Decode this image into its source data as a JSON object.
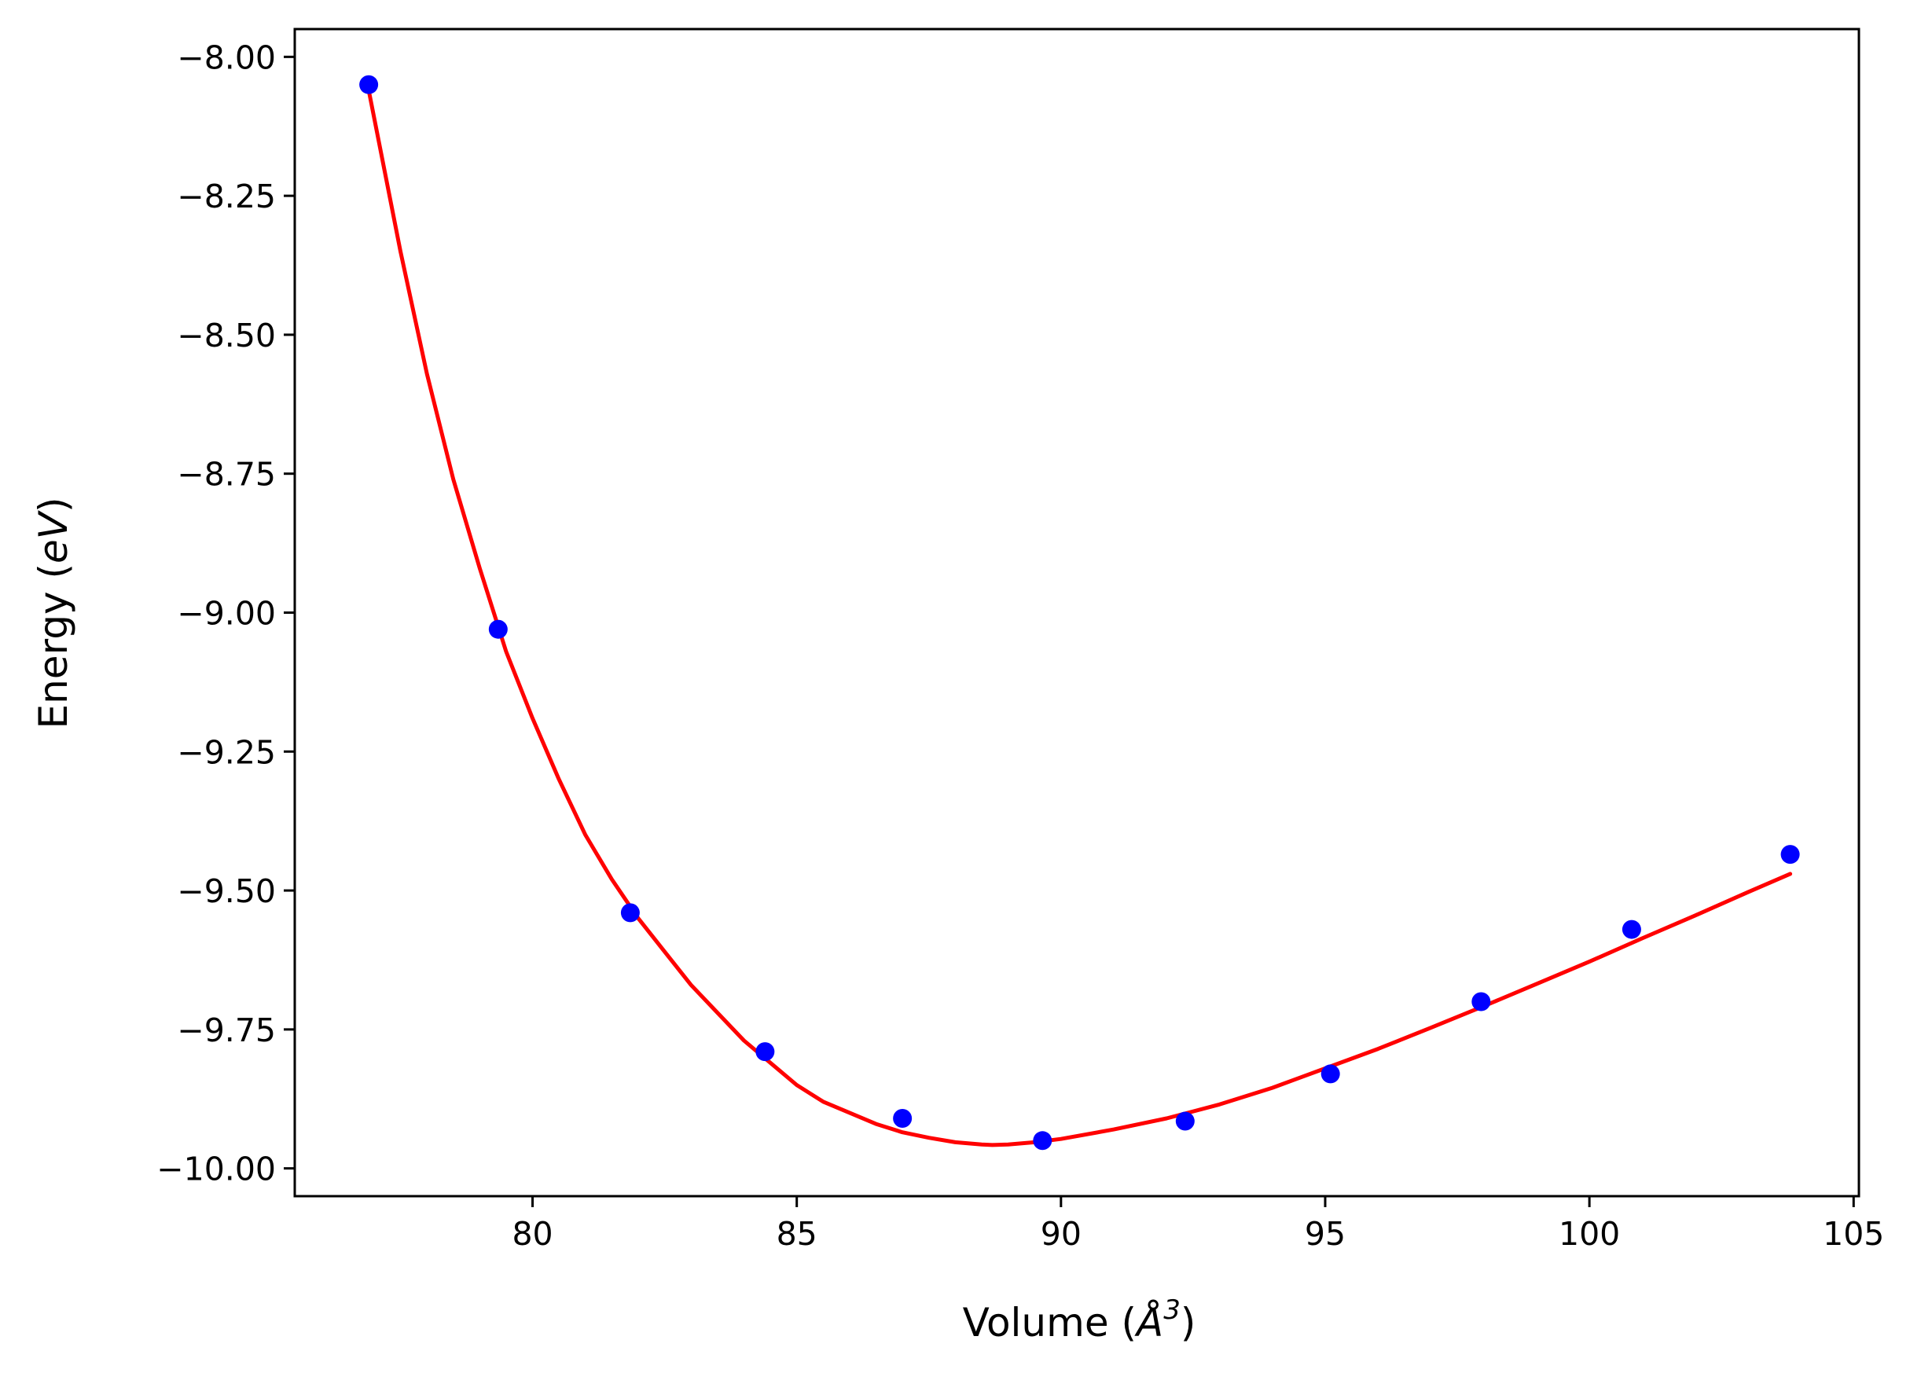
{
  "chart_data": {
    "type": "scatter",
    "xlabel": "Volume (Å³)",
    "xlabel_parts": {
      "prefix": "Volume (",
      "symbol": "Å",
      "exponent": "3",
      "suffix": ")"
    },
    "ylabel": "Energy (eV)",
    "ylabel_parts": {
      "prefix": "Energy (",
      "unit": "eV",
      "suffix": ")"
    },
    "xlim": [
      75.5,
      105.1
    ],
    "ylim": [
      -10.05,
      -7.95
    ],
    "xticks": [
      80,
      85,
      90,
      95,
      100,
      105
    ],
    "yticks": [
      -8.0,
      -8.25,
      -8.5,
      -8.75,
      -9.0,
      -9.25,
      -9.5,
      -9.75,
      -10.0
    ],
    "xtick_labels": [
      "80",
      "85",
      "90",
      "95",
      "100",
      "105"
    ],
    "ytick_labels": [
      "−8.00",
      "−8.25",
      "−8.50",
      "−8.75",
      "−9.00",
      "−9.25",
      "−9.50",
      "−9.75",
      "−10.00"
    ],
    "grid": false,
    "legend": "none",
    "series": [
      {
        "kind": "points",
        "color": "#0000ff",
        "x": [
          76.9,
          79.35,
          81.85,
          84.4,
          87.0,
          89.65,
          92.35,
          95.1,
          97.95,
          100.8,
          103.8
        ],
        "y": [
          -8.05,
          -9.03,
          -9.54,
          -9.79,
          -9.91,
          -9.95,
          -9.915,
          -9.83,
          -9.7,
          -9.57,
          -9.435
        ]
      },
      {
        "kind": "fit-line",
        "color": "#ff0000",
        "x": [
          76.9,
          77.5,
          78.0,
          78.5,
          79.0,
          79.5,
          80.0,
          80.5,
          81.0,
          81.5,
          82.0,
          82.5,
          83.0,
          83.5,
          84.0,
          84.5,
          85.0,
          85.5,
          86.0,
          86.5,
          87.0,
          87.5,
          88.0,
          88.5,
          88.7,
          89.0,
          89.5,
          90.0,
          91.0,
          92.0,
          93.0,
          94.0,
          95.0,
          96.0,
          97.0,
          98.0,
          99.0,
          100.0,
          101.0,
          102.0,
          103.0,
          103.8
        ],
        "y": [
          -8.06,
          -8.35,
          -8.57,
          -8.76,
          -8.92,
          -9.07,
          -9.19,
          -9.3,
          -9.4,
          -9.48,
          -9.55,
          -9.61,
          -9.67,
          -9.72,
          -9.77,
          -9.81,
          -9.85,
          -9.88,
          -9.9,
          -9.92,
          -9.935,
          -9.945,
          -9.953,
          -9.957,
          -9.958,
          -9.957,
          -9.953,
          -9.947,
          -9.93,
          -9.91,
          -9.885,
          -9.855,
          -9.82,
          -9.785,
          -9.747,
          -9.708,
          -9.668,
          -9.628,
          -9.586,
          -9.545,
          -9.503,
          -9.47
        ]
      }
    ]
  }
}
